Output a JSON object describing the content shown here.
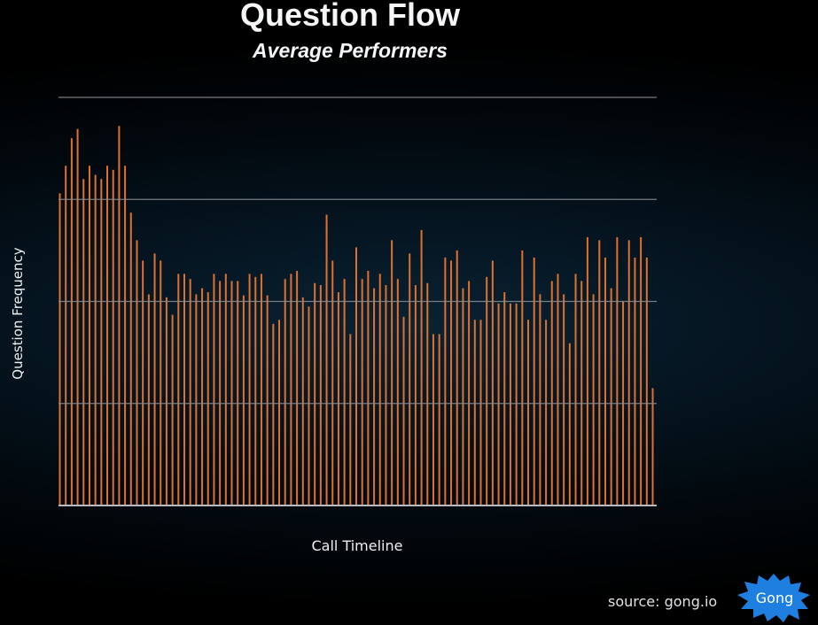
{
  "header": {
    "title": "Question Flow",
    "subtitle": "Average Performers"
  },
  "axes": {
    "ylabel": "Question Frequency",
    "xlabel": "Call Timeline"
  },
  "footer": {
    "source": "source: gong.io",
    "logo_text": "Gong"
  },
  "colors": {
    "bar": "#e0702e",
    "grid": "#8a8f94",
    "logo_bg": "#1f7fe0",
    "text": "#f4f6f8"
  },
  "chart_data": {
    "type": "bar",
    "title": "Question Flow",
    "subtitle": "Average Performers",
    "xlabel": "Call Timeline",
    "ylabel": "Question Frequency",
    "ylim": [
      0,
      4
    ],
    "grid": true,
    "gridlines_y": [
      0,
      1,
      2,
      3,
      4
    ],
    "tick_labels_shown": false,
    "legend": null,
    "note": "Values in grid units (no numeric tick labels shown); estimated from bar heights relative to gridlines",
    "x": [
      1,
      2,
      3,
      4,
      5,
      6,
      7,
      8,
      9,
      10,
      11,
      12,
      13,
      14,
      15,
      16,
      17,
      18,
      19,
      20,
      21,
      22,
      23,
      24,
      25,
      26,
      27,
      28,
      29,
      30,
      31,
      32,
      33,
      34,
      35,
      36,
      37,
      38,
      39,
      40,
      41,
      42,
      43,
      44,
      45,
      46,
      47,
      48,
      49,
      50,
      51,
      52,
      53,
      54,
      55,
      56,
      57,
      58,
      59,
      60,
      61,
      62,
      63,
      64,
      65,
      66,
      67,
      68,
      69,
      70,
      71,
      72,
      73,
      74,
      75,
      76,
      77,
      78,
      79,
      80,
      81,
      82,
      83,
      84,
      85,
      86,
      87,
      88,
      89,
      90,
      91,
      92,
      93,
      94,
      95,
      96,
      97,
      98,
      99,
      100,
      101
    ],
    "values": [
      3.06,
      3.33,
      3.6,
      3.69,
      3.2,
      3.33,
      3.24,
      3.2,
      3.33,
      3.29,
      3.72,
      3.33,
      2.87,
      2.6,
      2.4,
      2.07,
      2.47,
      2.4,
      2.04,
      1.87,
      2.27,
      2.27,
      2.22,
      2.07,
      2.13,
      2.09,
      2.27,
      2.2,
      2.27,
      2.2,
      2.2,
      2.06,
      2.27,
      2.24,
      2.27,
      2.06,
      1.78,
      1.82,
      2.22,
      2.27,
      2.3,
      2.04,
      1.95,
      2.18,
      2.16,
      2.85,
      2.4,
      2.09,
      2.22,
      1.68,
      2.53,
      2.22,
      2.3,
      2.13,
      2.27,
      2.16,
      2.6,
      2.22,
      1.85,
      2.47,
      2.16,
      2.7,
      2.18,
      1.68,
      1.68,
      2.43,
      2.4,
      2.5,
      2.13,
      2.2,
      1.82,
      1.82,
      2.24,
      2.4,
      1.98,
      2.09,
      1.98,
      1.98,
      2.5,
      1.82,
      2.43,
      2.07,
      1.82,
      2.2,
      2.27,
      2.07,
      1.59,
      2.27,
      2.2,
      2.63,
      2.07,
      2.6,
      2.43,
      2.13,
      2.63,
      2.0,
      2.6,
      2.43,
      2.63,
      2.43,
      1.15
    ]
  }
}
